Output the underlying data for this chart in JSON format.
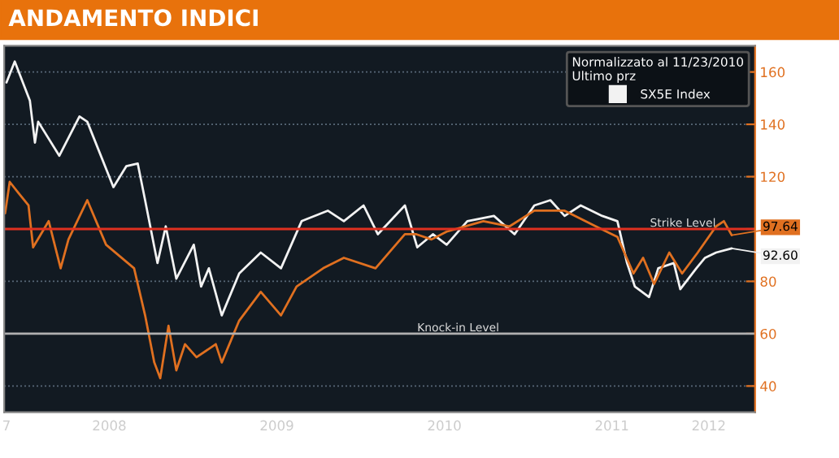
{
  "chart_data": {
    "type": "line",
    "title": "ANDAMENTO INDICI",
    "legend_title": "Normalizzato al 11/23/2010\nUltimo prz",
    "series": [
      {
        "name": "SX5E Index",
        "color": "#f2f2f2",
        "x": [
          "2007-11-20",
          "2007-12-08",
          "2008-01-10",
          "2008-01-21",
          "2008-01-28",
          "2008-03-14",
          "2008-04-27",
          "2008-05-14",
          "2008-07-10",
          "2008-08-07",
          "2008-09-01",
          "2008-09-17",
          "2008-10-14",
          "2008-11-01",
          "2008-11-24",
          "2009-01-01",
          "2009-01-17",
          "2009-02-03",
          "2009-03-03",
          "2009-04-10",
          "2009-05-27",
          "2009-07-10",
          "2009-08-24",
          "2009-10-20",
          "2009-11-24",
          "2010-01-06",
          "2010-02-06",
          "2010-04-06",
          "2010-05-03",
          "2010-06-06",
          "2010-07-06",
          "2010-08-20",
          "2010-10-17",
          "2010-12-01",
          "2011-01-13",
          "2011-02-17",
          "2011-03-20",
          "2011-04-24",
          "2011-06-10",
          "2011-07-13",
          "2011-08-03",
          "2011-08-20",
          "2011-09-20",
          "2011-10-10",
          "2011-11-13",
          "2011-11-27",
          "2012-01-01",
          "2012-01-20",
          "2012-02-13",
          "2012-03-18"
        ],
        "values": [
          156,
          164,
          149,
          133,
          141,
          128,
          143,
          141,
          116,
          124,
          125,
          111,
          87,
          101,
          81,
          94,
          78,
          85,
          67,
          83,
          91,
          85,
          103,
          107,
          103,
          109,
          98,
          109,
          93,
          98,
          94,
          103,
          105,
          98,
          109,
          111,
          105,
          109,
          105,
          103,
          87,
          78,
          74,
          85,
          87,
          77,
          85,
          89,
          91,
          92.6
        ]
      },
      {
        "color": "#e07020",
        "x": [
          "2007-11-17",
          "2007-11-27",
          "2007-12-15",
          "2008-01-07",
          "2008-01-17",
          "2008-02-20",
          "2008-03-17",
          "2008-04-03",
          "2008-05-14",
          "2008-06-24",
          "2008-08-24",
          "2008-09-17",
          "2008-10-07",
          "2008-10-20",
          "2008-11-07",
          "2008-11-24",
          "2008-12-13",
          "2009-01-07",
          "2009-02-18",
          "2009-03-03",
          "2009-04-10",
          "2009-05-27",
          "2009-07-10",
          "2009-08-13",
          "2009-10-10",
          "2009-11-24",
          "2010-02-01",
          "2010-04-06",
          "2010-05-01",
          "2010-06-03",
          "2010-07-06",
          "2010-09-24",
          "2010-11-20",
          "2011-01-13",
          "2011-03-20",
          "2011-05-27",
          "2011-07-13",
          "2011-08-17",
          "2011-09-07",
          "2011-10-01",
          "2011-11-03",
          "2011-12-01",
          "2012-01-04",
          "2012-02-13",
          "2012-03-01",
          "2012-03-18"
        ],
        "values": [
          106,
          118,
          114,
          109,
          93,
          103,
          85,
          96,
          111,
          94,
          85,
          67,
          49,
          43,
          63,
          46,
          56,
          51,
          56,
          49,
          65,
          76,
          67,
          78,
          85,
          89,
          85,
          98,
          98,
          96,
          99,
          103,
          101,
          107,
          107,
          101,
          97,
          83,
          89,
          79,
          91,
          83,
          91,
          101,
          103,
          97.64
        ]
      }
    ],
    "annotations": [
      {
        "text": "97.64",
        "x": "2012-03-18",
        "y": 97.64
      },
      {
        "text": "92.60",
        "x": "2012-03-18",
        "y": 92.6
      }
    ],
    "ref_lines": [
      {
        "axis": "y",
        "value": 100,
        "label": "Strike Level",
        "color": "#e03020"
      },
      {
        "axis": "y",
        "value": 60,
        "label": "Knock-in Level",
        "color": "#b0b0b0"
      }
    ],
    "xlim": [
      "2007-11-15",
      "2012-05-08"
    ],
    "xticks": [
      {
        "value": "2007-11-20",
        "label": "7"
      },
      {
        "value": "2008-07-01",
        "label": "2008"
      },
      {
        "value": "2009-07-01",
        "label": "2009"
      },
      {
        "value": "2010-07-01",
        "label": "2010"
      },
      {
        "value": "2011-07-01",
        "label": "2011"
      },
      {
        "value": "2012-01-28",
        "label": "2012"
      }
    ],
    "ylim": [
      30,
      170
    ],
    "yticks": [
      40,
      60,
      80,
      {
        "value": 100,
        "label": null
      },
      120,
      140,
      160
    ],
    "grid": "y",
    "legend": "top right",
    "line_style": "solid",
    "marker": "none"
  }
}
